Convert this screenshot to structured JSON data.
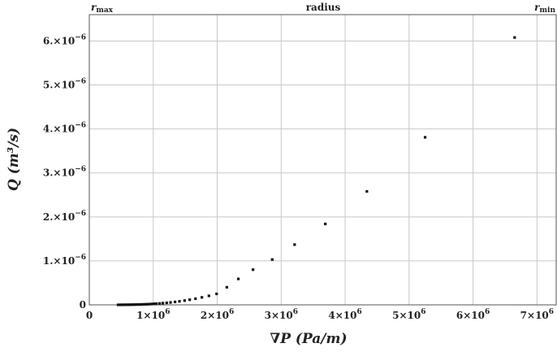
{
  "chart_data": {
    "type": "scatter",
    "xlabel": "∇P (Pa/m)",
    "ylabel": "Q (m³/s)",
    "top_axis": {
      "left_label": "r",
      "left_sub": "max",
      "center_label": "radius",
      "right_label": "r",
      "right_sub": "min"
    },
    "xlim": [
      0,
      7300000
    ],
    "ylim": [
      0,
      6.6e-06
    ],
    "x_ticks": [
      {
        "value": 0,
        "label": "0"
      },
      {
        "value": 1000000,
        "label": "1×10",
        "exp": "6"
      },
      {
        "value": 2000000,
        "label": "2×10",
        "exp": "6"
      },
      {
        "value": 3000000,
        "label": "3×10",
        "exp": "6"
      },
      {
        "value": 4000000,
        "label": "4×10",
        "exp": "6"
      },
      {
        "value": 5000000,
        "label": "5×10",
        "exp": "6"
      },
      {
        "value": 6000000,
        "label": "6×10",
        "exp": "6"
      },
      {
        "value": 7000000,
        "label": "7×10",
        "exp": "6"
      }
    ],
    "y_ticks": [
      {
        "value": 0,
        "label": "0"
      },
      {
        "value": 1e-06,
        "label": "1.×10",
        "exp": "−6"
      },
      {
        "value": 2e-06,
        "label": "2.×10",
        "exp": "−6"
      },
      {
        "value": 3e-06,
        "label": "3.×10",
        "exp": "−6"
      },
      {
        "value": 4e-06,
        "label": "4.×10",
        "exp": "−6"
      },
      {
        "value": 5e-06,
        "label": "5.×10",
        "exp": "−6"
      },
      {
        "value": 6e-06,
        "label": "6.×10",
        "exp": "−6"
      }
    ],
    "grid": true,
    "marker_color": "#111111",
    "grid_color": "#c8c8c8",
    "points": [
      [
        450000,
        0.0
      ],
      [
        480000,
        1e-09
      ],
      [
        510000,
        1e-09
      ],
      [
        540000,
        2e-09
      ],
      [
        570000,
        2e-09
      ],
      [
        600000,
        3e-09
      ],
      [
        630000,
        3e-09
      ],
      [
        660000,
        4e-09
      ],
      [
        690000,
        5e-09
      ],
      [
        720000,
        6e-09
      ],
      [
        750000,
        7e-09
      ],
      [
        780000,
        8e-09
      ],
      [
        810000,
        9e-09
      ],
      [
        840000,
        1.1e-08
      ],
      [
        870000,
        1.2e-08
      ],
      [
        900000,
        1.4e-08
      ],
      [
        930000,
        1.6e-08
      ],
      [
        960000,
        1.8e-08
      ],
      [
        990000,
        2.1e-08
      ],
      [
        1020000,
        2.4e-08
      ],
      [
        1050000,
        2.7e-08
      ],
      [
        1100000,
        3.2e-08
      ],
      [
        1150000,
        3.8e-08
      ],
      [
        1210000,
        4.6e-08
      ],
      [
        1270000,
        5.5e-08
      ],
      [
        1340000,
        6.7e-08
      ],
      [
        1410000,
        8e-08
      ],
      [
        1490000,
        9.7e-08
      ],
      [
        1570000,
        1.17e-07
      ],
      [
        1660000,
        1.4e-07
      ],
      [
        1760000,
        1.7e-07
      ],
      [
        1870000,
        2.05e-07
      ],
      [
        1990000,
        2.5e-07
      ],
      [
        2150000,
        4e-07
      ],
      [
        2330000,
        5.9e-07
      ],
      [
        2560000,
        8e-07
      ],
      [
        2860000,
        1.03e-06
      ],
      [
        3210000,
        1.37e-06
      ],
      [
        3690000,
        1.84e-06
      ],
      [
        4340000,
        2.58e-06
      ],
      [
        5250000,
        3.81e-06
      ],
      [
        6650000,
        6.08e-06
      ]
    ]
  }
}
